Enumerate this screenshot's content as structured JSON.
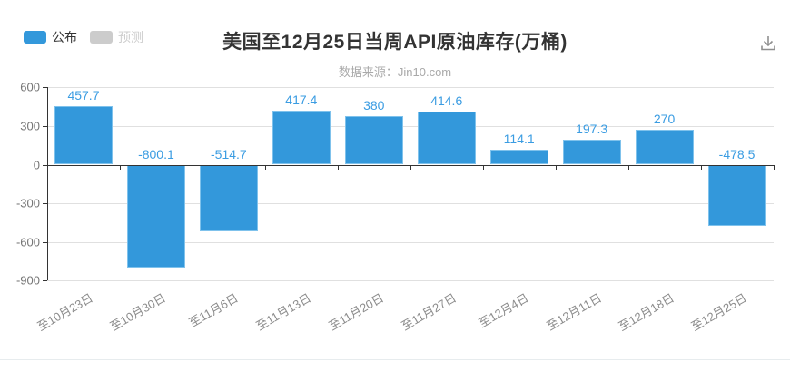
{
  "header": {
    "title": "美国至12月25日当周API原油库存(万桶)",
    "subtitle": "数据来源：Jin10.com"
  },
  "legend": {
    "items": [
      {
        "label": "公布",
        "color": "#3398db",
        "active": true
      },
      {
        "label": "预测",
        "color": "#cccccc",
        "active": false
      }
    ]
  },
  "toolbar": {
    "save_icon": "download-to-tray"
  },
  "chart_data": {
    "type": "bar",
    "title": "美国至12月25日当周API原油库存(万桶)",
    "subtitle": "数据来源：Jin10.com",
    "categories": [
      "至10月23日",
      "至10月30日",
      "至11月6日",
      "至11月13日",
      "至11月20日",
      "至11月27日",
      "至12月4日",
      "至12月11日",
      "至12月18日",
      "至12月25日"
    ],
    "series": [
      {
        "name": "公布",
        "color": "#3398db",
        "values": [
          457.7,
          -800.1,
          -514.7,
          417.4,
          380,
          414.6,
          114.1,
          197.3,
          270,
          -478.5
        ]
      },
      {
        "name": "预测",
        "color": "#cccccc",
        "values": [],
        "hidden": true
      }
    ],
    "ylim": [
      -900,
      600
    ],
    "y_ticks": [
      600,
      300,
      0,
      -300,
      -600,
      -900
    ],
    "grid": true,
    "legend_position": "top-left",
    "value_labels": "above-bar",
    "value_label_color": "#3a9ce2",
    "xlabel": "",
    "ylabel": ""
  }
}
